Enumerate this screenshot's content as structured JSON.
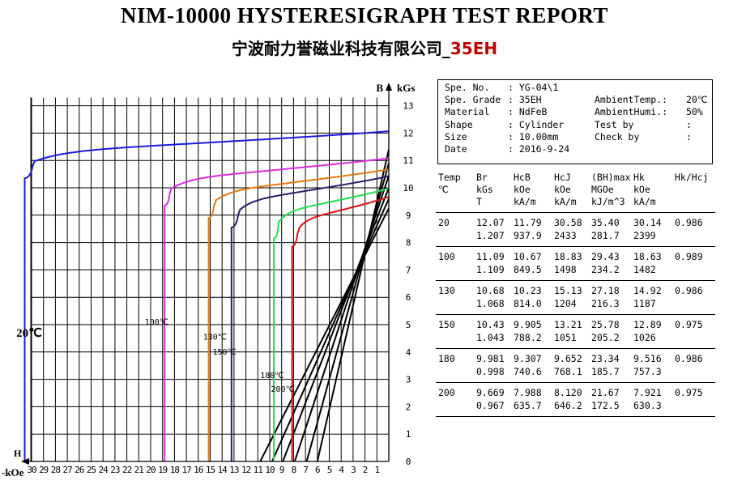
{
  "title": "NIM-10000 HYSTERESIGRAPH TEST REPORT",
  "subtitle": {
    "company": "宁波耐力誉磁业科技有限公司_",
    "grade": "35EH"
  },
  "info": {
    "rows": [
      [
        "Spe. No.",
        ": YG-04\\1",
        "",
        ""
      ],
      [
        "Spe. Grade",
        ": 35EH",
        "AmbientTemp.:",
        "20℃"
      ],
      [
        "Material",
        ": NdFeB",
        "AmbientHumi.:",
        "50%"
      ],
      [
        "Shape",
        ": Cylinder",
        "Test by",
        ":"
      ],
      [
        "Size",
        ": 10.00mm",
        "Check by",
        ":"
      ],
      [
        "Date",
        ": 2016-9-24",
        "",
        ""
      ]
    ]
  },
  "table": {
    "headers": [
      [
        "Temp",
        "Br",
        "HcB",
        "HcJ",
        "(BH)max",
        "Hk",
        "Hk/Hcj"
      ],
      [
        "℃",
        "kGs",
        "kOe",
        "kOe",
        "MGOe",
        "kOe",
        ""
      ],
      [
        "",
        "T",
        "kA/m",
        "kA/m",
        "kJ/m^3",
        "kA/m",
        ""
      ]
    ],
    "rows": [
      {
        "temp": "20",
        "line1": [
          "12.07",
          "11.79",
          "30.58",
          "35.40",
          "30.14",
          "0.986"
        ],
        "line2": [
          "1.207",
          "937.9",
          "2433",
          "281.7",
          "2399"
        ]
      },
      {
        "temp": "100",
        "line1": [
          "11.09",
          "10.67",
          "18.83",
          "29.43",
          "18.63",
          "0.989"
        ],
        "line2": [
          "1.109",
          "849.5",
          "1498",
          "234.2",
          "1482"
        ]
      },
      {
        "temp": "130",
        "line1": [
          "10.68",
          "10.23",
          "15.13",
          "27.18",
          "14.92",
          "0.986"
        ],
        "line2": [
          "1.068",
          "814.0",
          "1204",
          "216.3",
          "1187"
        ]
      },
      {
        "temp": "150",
        "line1": [
          "10.43",
          "9.905",
          "13.21",
          "25.78",
          "12.89",
          "0.975"
        ],
        "line2": [
          "1.043",
          "788.2",
          "1051",
          "205.2",
          "1026"
        ]
      },
      {
        "temp": "180",
        "line1": [
          "9.981",
          "9.307",
          "9.652",
          "23.34",
          "9.516",
          "0.986"
        ],
        "line2": [
          "0.998",
          "740.6",
          "768.1",
          "185.7",
          "757.3"
        ]
      },
      {
        "temp": "200",
        "line1": [
          "9.669",
          "7.988",
          "8.120",
          "21.67",
          "7.921",
          "0.975"
        ],
        "line2": [
          "0.967",
          "635.7",
          "646.2",
          "172.5",
          "630.3"
        ]
      }
    ]
  },
  "chart_data": {
    "type": "line",
    "xlabel": "-kOe",
    "ylabel": "kGs",
    "x_axis_letter": "H",
    "y_axis_letter": "B",
    "xlim": [
      0,
      32
    ],
    "ylim": [
      0,
      13
    ],
    "x_ticks": [
      30,
      29,
      28,
      27,
      26,
      25,
      24,
      23,
      22,
      21,
      20,
      19,
      18,
      17,
      16,
      15,
      14,
      13,
      12,
      11,
      10,
      9,
      8,
      7,
      6,
      5,
      4,
      3,
      2,
      1
    ],
    "y_ticks": [
      0,
      1,
      2,
      3,
      4,
      5,
      6,
      7,
      8,
      9,
      10,
      11,
      12,
      13
    ],
    "grid": true,
    "series": [
      {
        "name": "20℃",
        "color": "#1a1adf",
        "br": 12.07,
        "hcj": 30.58,
        "hk": 30.14,
        "plateau": 11.3,
        "slope": 0.026,
        "label_h": 30.2,
        "label_b": 4.55,
        "big_label": true
      },
      {
        "name": "100℃",
        "color": "#d62dd6",
        "br": 11.09,
        "hcj": 18.83,
        "hk": 18.63,
        "plateau": 10.3,
        "slope": 0.042,
        "label_h": 19.5,
        "label_b": 5.0,
        "big_label": false
      },
      {
        "name": "130℃",
        "color": "#e07a10",
        "br": 10.68,
        "hcj": 15.13,
        "hk": 14.92,
        "plateau": 9.85,
        "slope": 0.055,
        "label_h": 14.6,
        "label_b": 4.45,
        "big_label": false
      },
      {
        "name": "150℃",
        "color": "#2e1a6e",
        "br": 10.43,
        "hcj": 13.21,
        "hk": 12.89,
        "plateau": 9.5,
        "slope": 0.067,
        "label_h": 13.8,
        "label_b": 3.9,
        "big_label": false
      },
      {
        "name": "180℃",
        "color": "#1ee04a",
        "br": 9.981,
        "hcj": 9.652,
        "hk": 9.516,
        "plateau": 9.1,
        "slope": 0.09,
        "label_h": 9.8,
        "label_b": 3.05,
        "big_label": false
      },
      {
        "name": "200℃",
        "color": "#e01010",
        "br": 9.669,
        "hcj": 8.12,
        "hk": 7.921,
        "plateau": 8.8,
        "slope": 0.11,
        "label_h": 8.9,
        "label_b": 2.55,
        "big_label": false
      }
    ],
    "load_lines": [
      {
        "b_at_zero": 11.4,
        "h_at_b0": 6.0
      },
      {
        "b_at_zero": 10.9,
        "h_at_b0": 6.9
      },
      {
        "b_at_zero": 10.45,
        "h_at_b0": 7.9
      },
      {
        "b_at_zero": 10.0,
        "h_at_b0": 8.9
      },
      {
        "b_at_zero": 9.6,
        "h_at_b0": 9.8
      },
      {
        "b_at_zero": 9.25,
        "h_at_b0": 10.8
      }
    ]
  }
}
